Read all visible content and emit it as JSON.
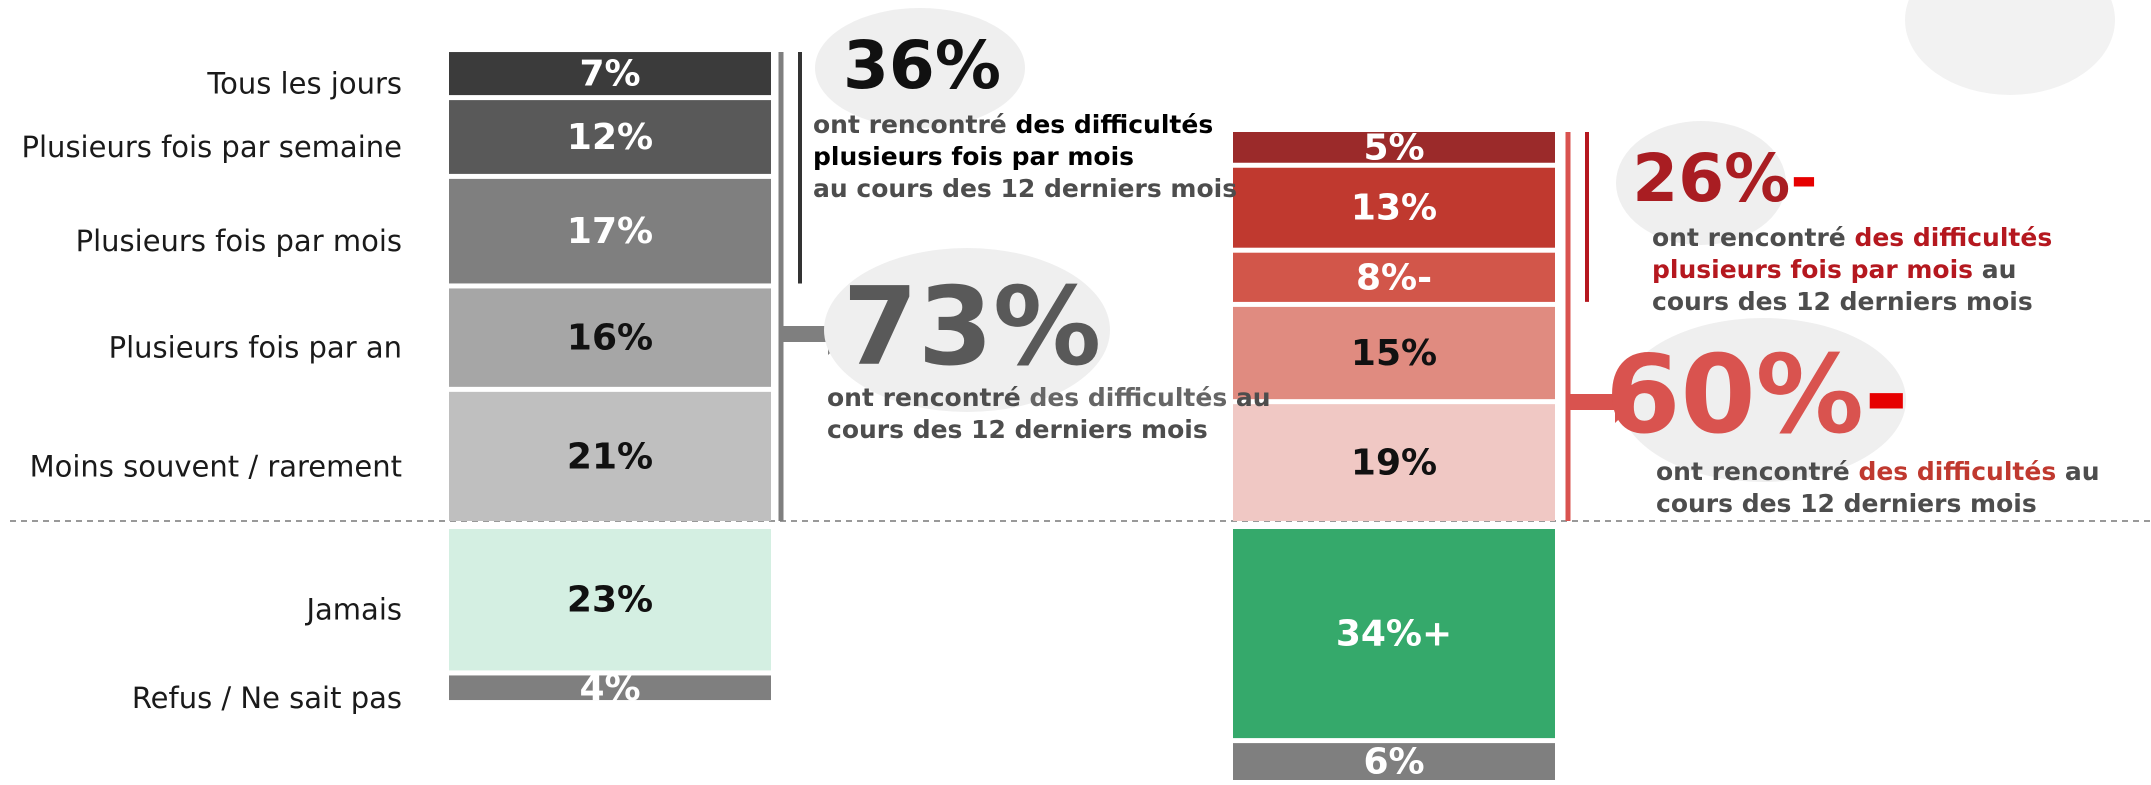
{
  "chart_data": {
    "type": "stacked-bar",
    "categories": [
      null,
      null
    ],
    "series": [
      {
        "name": "Tous les jours",
        "colors": [
          "#3b3b3b",
          "#9b2a2a"
        ],
        "values": [
          7,
          5
        ],
        "value_labels": [
          "7%",
          "5%"
        ]
      },
      {
        "name": "Plusieurs fois par semaine",
        "colors": [
          "#595959",
          "#c0392f"
        ],
        "values": [
          12,
          13
        ],
        "value_labels": [
          "12%",
          "13%"
        ]
      },
      {
        "name": "Plusieurs fois par mois",
        "colors": [
          "#7f7f7f",
          "#d2564a"
        ],
        "values": [
          17,
          8
        ],
        "value_labels": [
          "17%",
          "8%-"
        ]
      },
      {
        "name": "Plusieurs fois par an",
        "colors": [
          "#a6a6a6",
          "#e08b80"
        ],
        "values": [
          16,
          15
        ],
        "value_labels": [
          "16%",
          "15%"
        ]
      },
      {
        "name": "Moins souvent / rarement",
        "colors": [
          "#bfbfbf",
          "#f0c8c4"
        ],
        "values": [
          21,
          19
        ],
        "value_labels": [
          "21%",
          "19%"
        ]
      },
      {
        "name": "Jamais",
        "colors": [
          "#d4efe2",
          "#35a96b"
        ],
        "values": [
          23,
          34
        ],
        "value_labels": [
          "23%",
          "34%+"
        ]
      },
      {
        "name": "Refus / Ne sait pas",
        "colors": [
          "#7f7f7f",
          "#7f7f7f"
        ],
        "values": [
          4,
          6
        ],
        "value_labels": [
          "4%",
          "6%"
        ]
      }
    ],
    "annotations": [
      {
        "label": "36%",
        "color": "#111111",
        "emph_color": "#000000",
        "lines": [
          [
            {
              "text": "ont rencontré "
            },
            {
              "text": "des difficultés",
              "emph": true
            }
          ],
          [
            {
              "text": "plusieurs fois par mois",
              "emph": true
            }
          ],
          [
            {
              "text": "au cours des 12 derniers mois"
            }
          ]
        ]
      },
      {
        "label": "73%",
        "color": "#595959",
        "emph_color": "#666666",
        "lines": [
          [
            {
              "text": "ont rencontré "
            },
            {
              "text": "des difficultés",
              "emph": true
            },
            {
              "text": " au"
            }
          ],
          [
            {
              "text": "cours des 12 derniers mois"
            }
          ]
        ]
      },
      {
        "label": "26%",
        "suffix": "-",
        "color": "#a91d22",
        "emph_color": "#b5181f",
        "lines": [
          [
            {
              "text": "ont rencontré "
            },
            {
              "text": "des difficultés",
              "emph": true
            }
          ],
          [
            {
              "text": "plusieurs fois par mois",
              "emph": true
            },
            {
              "text": " au"
            }
          ],
          [
            {
              "text": "cours des 12 derniers mois"
            }
          ]
        ]
      },
      {
        "label": "60%",
        "suffix": "-",
        "color": "#d9534f",
        "emph_color": "#c0392f",
        "lines": [
          [
            {
              "text": "ont rencontré "
            },
            {
              "text": "des difficultés",
              "emph": true
            },
            {
              "text": " au"
            }
          ],
          [
            {
              "text": "cours des 12 derniers mois"
            }
          ]
        ]
      }
    ]
  }
}
